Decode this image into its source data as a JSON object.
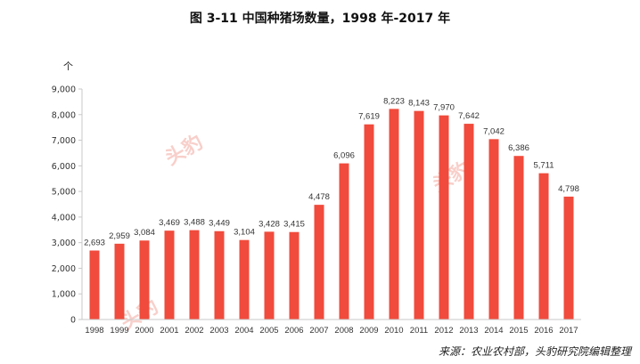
{
  "title": "图  3-11  中国种猪场数量，1998 年-2017 年",
  "unit": "个",
  "source": "来源：农业农村部，头豹研究院编辑整理",
  "watermark": "头豹",
  "colors": {
    "bar": "#f04b3c",
    "axis": "#c8c8c8",
    "text": "#333333"
  },
  "chart_data": {
    "type": "bar",
    "categories": [
      "1998",
      "1999",
      "2000",
      "2001",
      "2002",
      "2003",
      "2004",
      "2005",
      "2006",
      "2007",
      "2008",
      "2009",
      "2010",
      "2011",
      "2012",
      "2013",
      "2014",
      "2015",
      "2016",
      "2017"
    ],
    "values": [
      2693,
      2959,
      3084,
      3469,
      3488,
      3449,
      3104,
      3428,
      3415,
      4478,
      6096,
      7619,
      8223,
      8143,
      7970,
      7642,
      7042,
      6386,
      5711,
      4798
    ],
    "value_labels": [
      "2,693",
      "2,959",
      "3,084",
      "3,469",
      "3,488",
      "3,449",
      "3,104",
      "3,428",
      "3,415",
      "4,478",
      "6,096",
      "7,619",
      "8,223",
      "8,143",
      "7,970",
      "7,642",
      "7,042",
      "6,386",
      "5,711",
      "4,798"
    ],
    "ylim": [
      0,
      9000
    ],
    "yticks": [
      0,
      1000,
      2000,
      3000,
      4000,
      5000,
      6000,
      7000,
      8000,
      9000
    ],
    "ytick_labels": [
      "0",
      "1,000",
      "2,000",
      "3,000",
      "4,000",
      "5,000",
      "6,000",
      "7,000",
      "8,000",
      "9,000"
    ],
    "grid": false,
    "legend": "none"
  }
}
